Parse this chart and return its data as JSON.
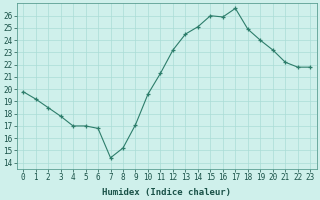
{
  "xlabel": "Humidex (Indice chaleur)",
  "x": [
    0,
    1,
    2,
    3,
    4,
    5,
    6,
    7,
    8,
    9,
    10,
    11,
    12,
    13,
    14,
    15,
    16,
    17,
    18,
    19,
    20,
    21,
    22,
    23
  ],
  "y": [
    19.8,
    19.2,
    18.5,
    17.8,
    17.0,
    17.0,
    16.8,
    14.4,
    15.2,
    17.1,
    19.6,
    21.3,
    23.2,
    24.5,
    25.1,
    26.0,
    25.9,
    26.6,
    24.9,
    24.0,
    23.2,
    22.2,
    21.8,
    21.8
  ],
  "line_color": "#2d7d6b",
  "marker": "+",
  "bg_color": "#cff0eb",
  "grid_color": "#aaddd6",
  "text_color": "#1a5248",
  "spine_color": "#5a9e92",
  "ylim": [
    13.5,
    27.0
  ],
  "yticks": [
    14,
    15,
    16,
    17,
    18,
    19,
    20,
    21,
    22,
    23,
    24,
    25,
    26
  ],
  "xticks": [
    0,
    1,
    2,
    3,
    4,
    5,
    6,
    7,
    8,
    9,
    10,
    11,
    12,
    13,
    14,
    15,
    16,
    17,
    18,
    19,
    20,
    21,
    22,
    23
  ],
  "xlim": [
    -0.5,
    23.5
  ],
  "tick_fontsize": 5.5,
  "xlabel_fontsize": 6.5,
  "monospace_font": "DejaVu Sans Mono"
}
